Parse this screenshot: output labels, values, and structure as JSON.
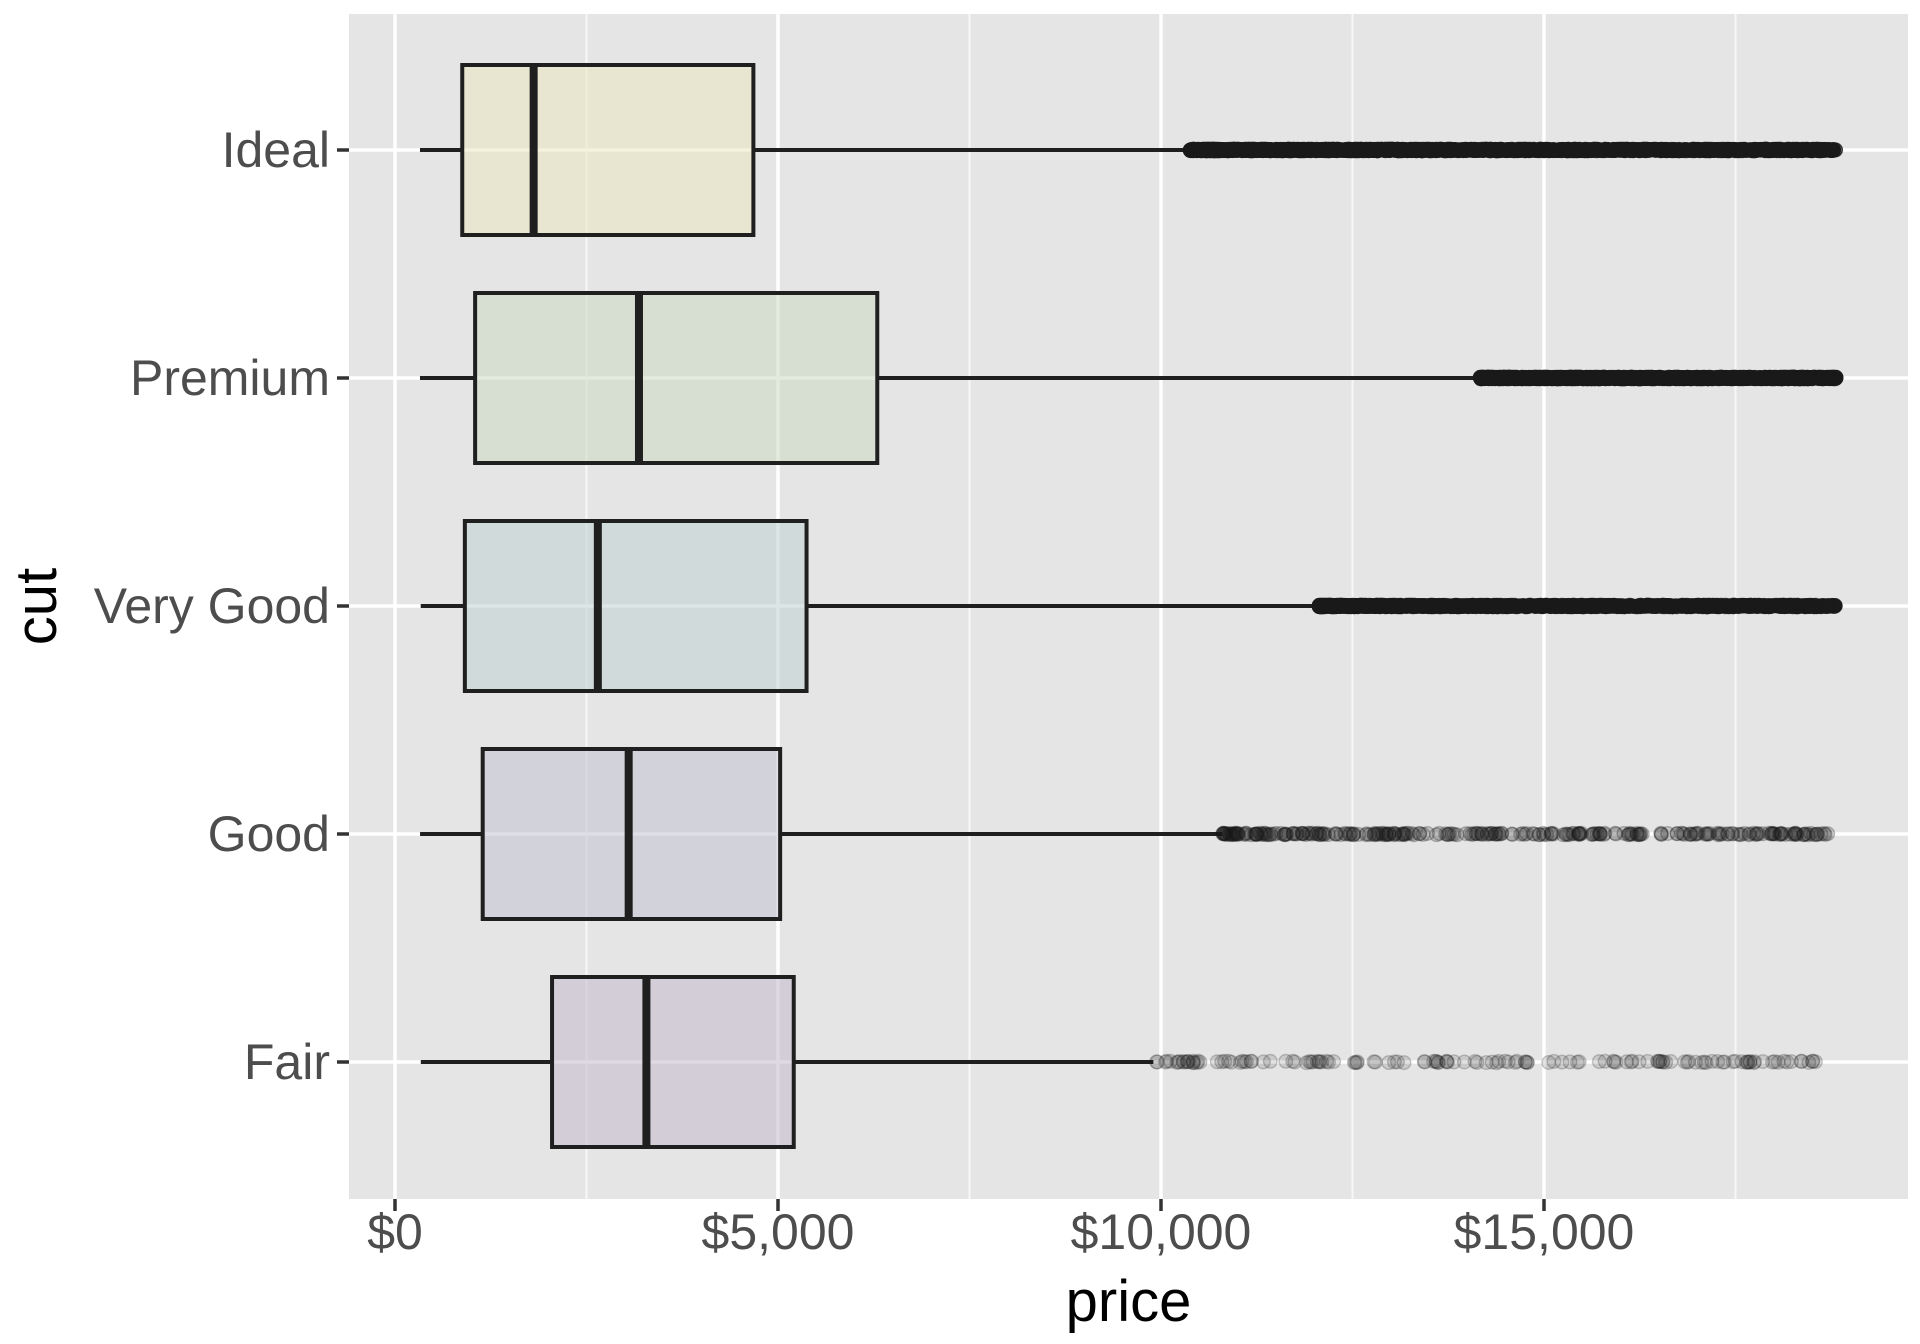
{
  "chart_data": {
    "type": "boxplot",
    "orientation": "horizontal",
    "title": "",
    "xlabel": "price",
    "ylabel": "cut",
    "grid": true,
    "legend": "none",
    "x_axis": {
      "ticks": [
        {
          "value": 0,
          "label": "$0"
        },
        {
          "value": 5000,
          "label": "$5,000"
        },
        {
          "value": 10000,
          "label": "$10,000"
        },
        {
          "value": 15000,
          "label": "$15,000"
        }
      ],
      "minor_ticks": [
        2500,
        7500,
        12500,
        17500
      ],
      "data_range": [
        326,
        18823
      ]
    },
    "categories": [
      "Ideal",
      "Premium",
      "Very Good",
      "Good",
      "Fair"
    ],
    "series": [
      {
        "cut": "Ideal",
        "whisker_low": 326,
        "q1": 878,
        "median": 1810,
        "q3": 4678.75,
        "whisker_high": 10372,
        "outlier_min": 10380,
        "outlier_max": 18806,
        "outlier_count_est": 1600,
        "outlier_alpha": 0.5,
        "outlier_left_bias": 1.35,
        "fill": "#EBE7BF"
      },
      {
        "cut": "Premium",
        "whisker_low": 326,
        "q1": 1046,
        "median": 3185,
        "q3": 6296,
        "whisker_high": 14160,
        "outlier_min": 14165,
        "outlier_max": 18823,
        "outlier_count_est": 1250,
        "outlier_alpha": 0.5,
        "outlier_left_bias": 1.2,
        "fill": "#CBDBC3"
      },
      {
        "cut": "Very Good",
        "whisker_low": 336,
        "q1": 912,
        "median": 2648,
        "q3": 5372.75,
        "whisker_high": 12060,
        "outlier_min": 12065,
        "outlier_max": 18818,
        "outlier_count_est": 1050,
        "outlier_alpha": 0.45,
        "outlier_left_bias": 1.45,
        "fill": "#C1D1D1"
      },
      {
        "cut": "Good",
        "whisker_low": 327,
        "q1": 1145,
        "median": 3050.5,
        "q3": 5028,
        "whisker_high": 10800,
        "outlier_min": 10806,
        "outlier_max": 18788,
        "outlier_count_est": 290,
        "outlier_alpha": 0.16,
        "outlier_left_bias": 1.35,
        "fill": "#C1C3D1"
      },
      {
        "cut": "Fair",
        "whisker_low": 337,
        "q1": 2050.25,
        "median": 3282,
        "q3": 5205.5,
        "whisker_high": 9900,
        "outlier_min": 9906,
        "outlier_max": 18574,
        "outlier_count_est": 140,
        "outlier_alpha": 0.13,
        "outlier_left_bias": 1.25,
        "fill": "#C3B9CB"
      }
    ],
    "style": {
      "panel_background": "#E5E5E5",
      "grid_major": "#FFFFFF",
      "grid_minor": "#FFFFFF",
      "box_stroke": "#1F1F1F",
      "box_fill_alpha": 0.55,
      "outlier_color": "#1A1A1A",
      "tick_label_color": "#4D4D4D",
      "axis_title_color": "#000000",
      "tick_mark_color": "#333333"
    }
  }
}
